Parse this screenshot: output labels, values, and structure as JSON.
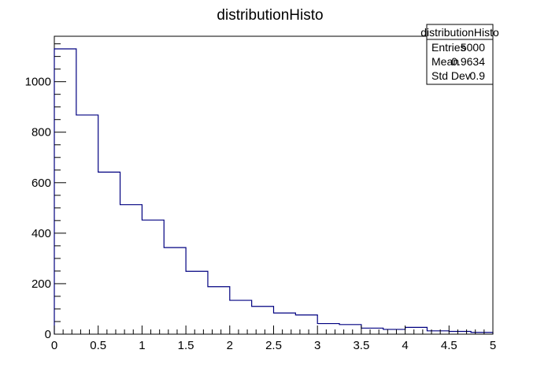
{
  "chart_data": {
    "type": "bar",
    "title": "distributionHisto",
    "xlabel": "",
    "ylabel": "",
    "bin_width": 0.25,
    "x": [
      0.0,
      0.25,
      0.5,
      0.75,
      1.0,
      1.25,
      1.5,
      1.75,
      2.0,
      2.25,
      2.5,
      2.75,
      3.0,
      3.25,
      3.5,
      3.75,
      4.0,
      4.25,
      4.5,
      4.75
    ],
    "values": [
      1130,
      868,
      642,
      513,
      452,
      343,
      249,
      188,
      134,
      110,
      84,
      76,
      42,
      38,
      24,
      19,
      27,
      13,
      11,
      7
    ],
    "xlim": [
      0,
      5
    ],
    "ylim": [
      0,
      1180
    ],
    "x_ticks": [
      "0",
      "0.5",
      "1",
      "1.5",
      "2",
      "2.5",
      "3",
      "3.5",
      "4",
      "4.5",
      "5"
    ],
    "y_ticks": [
      "0",
      "200",
      "400",
      "600",
      "800",
      "1000"
    ],
    "line_color": "#000080",
    "grid": false,
    "stats_box": {
      "name": "distributionHisto",
      "rows": [
        {
          "label": "Entries",
          "value": "5000"
        },
        {
          "label": "Mean",
          "value": "0.9634"
        },
        {
          "label": "Std Dev",
          "value": "0.9"
        }
      ]
    }
  }
}
